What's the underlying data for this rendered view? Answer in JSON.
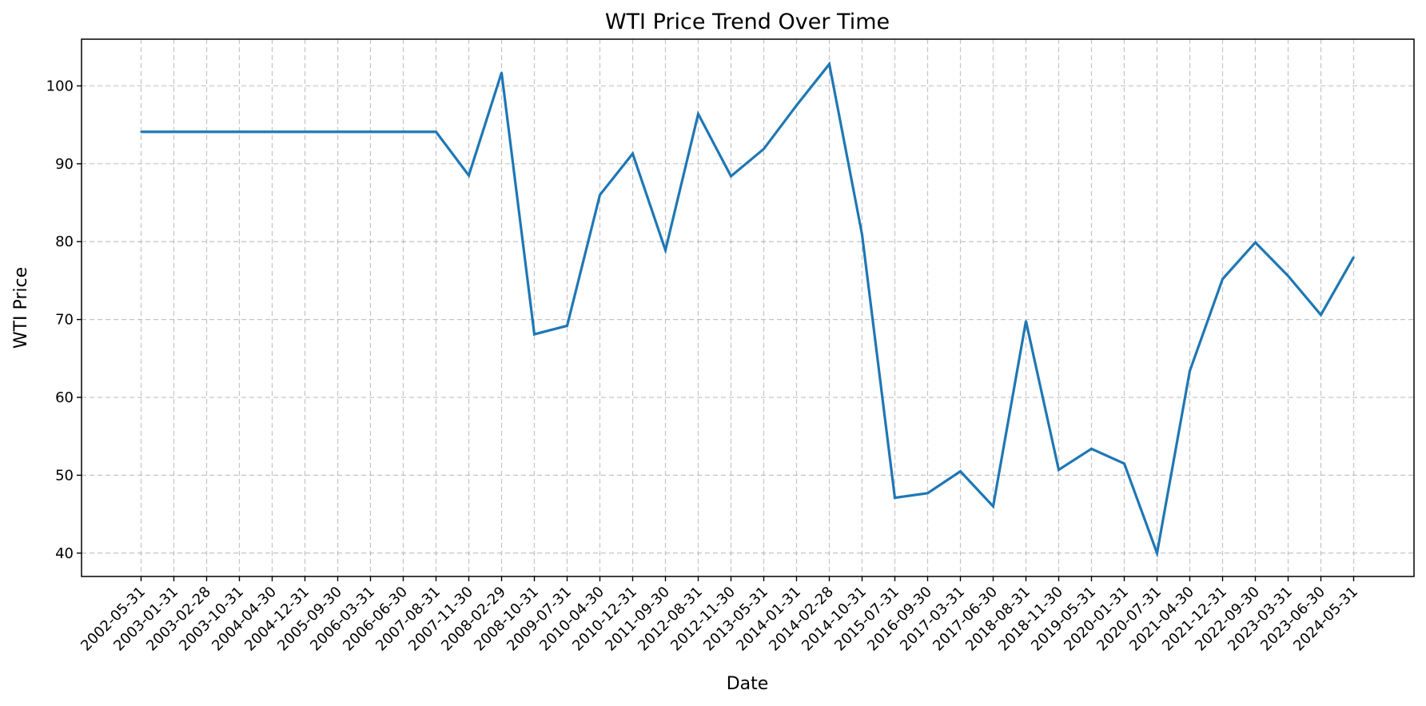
{
  "chart_data": {
    "type": "line",
    "title": "WTI Price Trend Over Time",
    "xlabel": "Date",
    "ylabel": "WTI Price",
    "ylim": [
      37,
      106
    ],
    "yticks": [
      40,
      50,
      60,
      70,
      80,
      90,
      100
    ],
    "grid": true,
    "line_color": "#1f77b4",
    "categories": [
      "2002-05-31",
      "2003-01-31",
      "2003-02-28",
      "2003-10-31",
      "2004-04-30",
      "2004-12-31",
      "2005-09-30",
      "2006-03-31",
      "2006-06-30",
      "2007-08-31",
      "2007-11-30",
      "2008-02-29",
      "2008-10-31",
      "2009-07-31",
      "2010-04-30",
      "2010-12-31",
      "2011-09-30",
      "2012-08-31",
      "2012-11-30",
      "2013-05-31",
      "2014-01-31",
      "2014-02-28",
      "2014-10-31",
      "2015-07-31",
      "2016-09-30",
      "2017-03-31",
      "2017-06-30",
      "2018-08-31",
      "2018-11-30",
      "2019-05-31",
      "2020-01-31",
      "2020-07-31",
      "2021-04-30",
      "2021-12-31",
      "2022-09-30",
      "2023-03-31",
      "2023-06-30",
      "2024-05-31"
    ],
    "series": [
      {
        "values": [
          94.1,
          94.1,
          94.1,
          94.1,
          94.1,
          94.1,
          94.1,
          94.1,
          94.1,
          94.1,
          88.5,
          101.7,
          68.1,
          69.2,
          86.0,
          91.3,
          78.9,
          96.4,
          88.4,
          91.9,
          97.5,
          102.8,
          80.9,
          47.1,
          47.7,
          50.5,
          46.0,
          69.8,
          50.7,
          53.4,
          51.5,
          40.0,
          63.4,
          75.2,
          79.9,
          75.6,
          70.6,
          78.0
        ]
      }
    ]
  }
}
